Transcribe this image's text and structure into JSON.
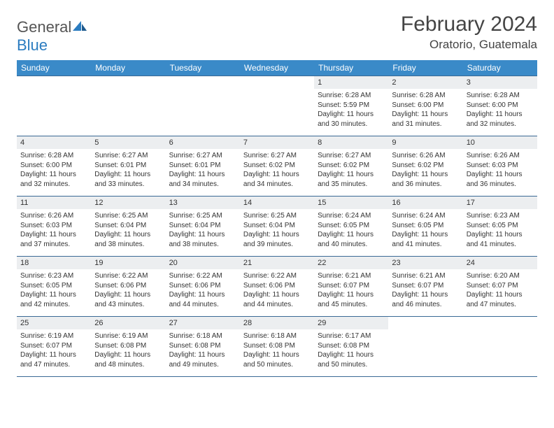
{
  "brand": {
    "name_a": "General",
    "name_b": "Blue"
  },
  "title": "February 2024",
  "location": "Oratorio, Guatemala",
  "colors": {
    "header_bg": "#3a8ac8",
    "header_text": "#ffffff",
    "border": "#3a6a95",
    "daynum_bg": "#eceef0",
    "logo_blue": "#2b7cc0",
    "text": "#333333",
    "page_bg": "#ffffff"
  },
  "days_of_week": [
    "Sunday",
    "Monday",
    "Tuesday",
    "Wednesday",
    "Thursday",
    "Friday",
    "Saturday"
  ],
  "weeks": [
    [
      {
        "n": "",
        "sr": "",
        "ss": "",
        "dl": ""
      },
      {
        "n": "",
        "sr": "",
        "ss": "",
        "dl": ""
      },
      {
        "n": "",
        "sr": "",
        "ss": "",
        "dl": ""
      },
      {
        "n": "",
        "sr": "",
        "ss": "",
        "dl": ""
      },
      {
        "n": "1",
        "sr": "Sunrise: 6:28 AM",
        "ss": "Sunset: 5:59 PM",
        "dl": "Daylight: 11 hours and 30 minutes."
      },
      {
        "n": "2",
        "sr": "Sunrise: 6:28 AM",
        "ss": "Sunset: 6:00 PM",
        "dl": "Daylight: 11 hours and 31 minutes."
      },
      {
        "n": "3",
        "sr": "Sunrise: 6:28 AM",
        "ss": "Sunset: 6:00 PM",
        "dl": "Daylight: 11 hours and 32 minutes."
      }
    ],
    [
      {
        "n": "4",
        "sr": "Sunrise: 6:28 AM",
        "ss": "Sunset: 6:00 PM",
        "dl": "Daylight: 11 hours and 32 minutes."
      },
      {
        "n": "5",
        "sr": "Sunrise: 6:27 AM",
        "ss": "Sunset: 6:01 PM",
        "dl": "Daylight: 11 hours and 33 minutes."
      },
      {
        "n": "6",
        "sr": "Sunrise: 6:27 AM",
        "ss": "Sunset: 6:01 PM",
        "dl": "Daylight: 11 hours and 34 minutes."
      },
      {
        "n": "7",
        "sr": "Sunrise: 6:27 AM",
        "ss": "Sunset: 6:02 PM",
        "dl": "Daylight: 11 hours and 34 minutes."
      },
      {
        "n": "8",
        "sr": "Sunrise: 6:27 AM",
        "ss": "Sunset: 6:02 PM",
        "dl": "Daylight: 11 hours and 35 minutes."
      },
      {
        "n": "9",
        "sr": "Sunrise: 6:26 AM",
        "ss": "Sunset: 6:02 PM",
        "dl": "Daylight: 11 hours and 36 minutes."
      },
      {
        "n": "10",
        "sr": "Sunrise: 6:26 AM",
        "ss": "Sunset: 6:03 PM",
        "dl": "Daylight: 11 hours and 36 minutes."
      }
    ],
    [
      {
        "n": "11",
        "sr": "Sunrise: 6:26 AM",
        "ss": "Sunset: 6:03 PM",
        "dl": "Daylight: 11 hours and 37 minutes."
      },
      {
        "n": "12",
        "sr": "Sunrise: 6:25 AM",
        "ss": "Sunset: 6:04 PM",
        "dl": "Daylight: 11 hours and 38 minutes."
      },
      {
        "n": "13",
        "sr": "Sunrise: 6:25 AM",
        "ss": "Sunset: 6:04 PM",
        "dl": "Daylight: 11 hours and 38 minutes."
      },
      {
        "n": "14",
        "sr": "Sunrise: 6:25 AM",
        "ss": "Sunset: 6:04 PM",
        "dl": "Daylight: 11 hours and 39 minutes."
      },
      {
        "n": "15",
        "sr": "Sunrise: 6:24 AM",
        "ss": "Sunset: 6:05 PM",
        "dl": "Daylight: 11 hours and 40 minutes."
      },
      {
        "n": "16",
        "sr": "Sunrise: 6:24 AM",
        "ss": "Sunset: 6:05 PM",
        "dl": "Daylight: 11 hours and 41 minutes."
      },
      {
        "n": "17",
        "sr": "Sunrise: 6:23 AM",
        "ss": "Sunset: 6:05 PM",
        "dl": "Daylight: 11 hours and 41 minutes."
      }
    ],
    [
      {
        "n": "18",
        "sr": "Sunrise: 6:23 AM",
        "ss": "Sunset: 6:05 PM",
        "dl": "Daylight: 11 hours and 42 minutes."
      },
      {
        "n": "19",
        "sr": "Sunrise: 6:22 AM",
        "ss": "Sunset: 6:06 PM",
        "dl": "Daylight: 11 hours and 43 minutes."
      },
      {
        "n": "20",
        "sr": "Sunrise: 6:22 AM",
        "ss": "Sunset: 6:06 PM",
        "dl": "Daylight: 11 hours and 44 minutes."
      },
      {
        "n": "21",
        "sr": "Sunrise: 6:22 AM",
        "ss": "Sunset: 6:06 PM",
        "dl": "Daylight: 11 hours and 44 minutes."
      },
      {
        "n": "22",
        "sr": "Sunrise: 6:21 AM",
        "ss": "Sunset: 6:07 PM",
        "dl": "Daylight: 11 hours and 45 minutes."
      },
      {
        "n": "23",
        "sr": "Sunrise: 6:21 AM",
        "ss": "Sunset: 6:07 PM",
        "dl": "Daylight: 11 hours and 46 minutes."
      },
      {
        "n": "24",
        "sr": "Sunrise: 6:20 AM",
        "ss": "Sunset: 6:07 PM",
        "dl": "Daylight: 11 hours and 47 minutes."
      }
    ],
    [
      {
        "n": "25",
        "sr": "Sunrise: 6:19 AM",
        "ss": "Sunset: 6:07 PM",
        "dl": "Daylight: 11 hours and 47 minutes."
      },
      {
        "n": "26",
        "sr": "Sunrise: 6:19 AM",
        "ss": "Sunset: 6:08 PM",
        "dl": "Daylight: 11 hours and 48 minutes."
      },
      {
        "n": "27",
        "sr": "Sunrise: 6:18 AM",
        "ss": "Sunset: 6:08 PM",
        "dl": "Daylight: 11 hours and 49 minutes."
      },
      {
        "n": "28",
        "sr": "Sunrise: 6:18 AM",
        "ss": "Sunset: 6:08 PM",
        "dl": "Daylight: 11 hours and 50 minutes."
      },
      {
        "n": "29",
        "sr": "Sunrise: 6:17 AM",
        "ss": "Sunset: 6:08 PM",
        "dl": "Daylight: 11 hours and 50 minutes."
      },
      {
        "n": "",
        "sr": "",
        "ss": "",
        "dl": ""
      },
      {
        "n": "",
        "sr": "",
        "ss": "",
        "dl": ""
      }
    ]
  ]
}
